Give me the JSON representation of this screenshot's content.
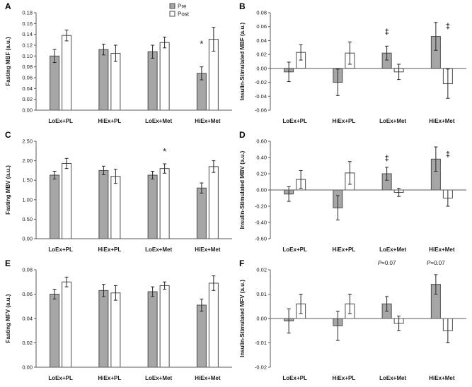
{
  "figure": {
    "colors": {
      "pre_fill": "#a6a6a6",
      "post_fill": "#ffffff",
      "bar_stroke": "#4d4d4d",
      "axis": "#595959",
      "error": "#262626",
      "text": "#1a1a1a"
    }
  },
  "chart_data": [
    {
      "panel": "A",
      "type": "bar",
      "ylabel": "Fasting MBF (a.u.)",
      "ylim": [
        0,
        0.18
      ],
      "ytick_step": 0.02,
      "ydecimals": 2,
      "categories": [
        "LoEx+PL",
        "HiEx+PL",
        "LoEx+Met",
        "HiEx+Met"
      ],
      "series": [
        {
          "name": "Pre",
          "values": [
            0.1,
            0.112,
            0.108,
            0.068
          ],
          "errors": [
            0.012,
            0.01,
            0.012,
            0.012
          ]
        },
        {
          "name": "Post",
          "values": [
            0.138,
            0.105,
            0.125,
            0.131
          ],
          "errors": [
            0.01,
            0.015,
            0.01,
            0.022
          ]
        }
      ],
      "annotations": [
        {
          "text": "*",
          "category": "HiEx+Met",
          "series": "Pre",
          "y": 0.117
        }
      ],
      "legend": true,
      "legend_position": "top-right"
    },
    {
      "panel": "B",
      "type": "bar",
      "ylabel": "Insulin-Stimulated MBF (a.u.)",
      "ylim": [
        -0.06,
        0.08
      ],
      "ytick_step": 0.02,
      "ydecimals": 2,
      "categories": [
        "LoEx+PL",
        "HiEx+PL",
        "LoEx+Met",
        "HiEx+Met"
      ],
      "series": [
        {
          "name": "Pre",
          "values": [
            -0.005,
            -0.02,
            0.022,
            0.046
          ],
          "errors": [
            0.014,
            0.019,
            0.01,
            0.02
          ]
        },
        {
          "name": "Post",
          "values": [
            0.023,
            0.022,
            -0.005,
            -0.022
          ],
          "errors": [
            0.011,
            0.016,
            0.011,
            0.021
          ]
        }
      ],
      "annotations": [
        {
          "text": "‡",
          "category": "LoEx+Met",
          "series": "Pre",
          "y": 0.049
        },
        {
          "text": "‡",
          "category": "HiEx+Met",
          "series": "Post",
          "y": 0.057
        }
      ],
      "legend": false
    },
    {
      "panel": "C",
      "type": "bar",
      "ylabel": "Fasting MBV (a.u.)",
      "ylim": [
        0,
        2.5
      ],
      "ytick_step": 0.5,
      "ydecimals": 2,
      "categories": [
        "LoEx+PL",
        "HiEx+PL",
        "LoEx+Met",
        "HiEx+Met"
      ],
      "series": [
        {
          "name": "Pre",
          "values": [
            1.63,
            1.75,
            1.63,
            1.3
          ],
          "errors": [
            0.1,
            0.11,
            0.1,
            0.13
          ]
        },
        {
          "name": "Post",
          "values": [
            1.93,
            1.6,
            1.8,
            1.85
          ],
          "errors": [
            0.13,
            0.18,
            0.12,
            0.15
          ]
        }
      ],
      "annotations": [
        {
          "text": "*",
          "category": "LoEx+Met",
          "series": "Post",
          "y": 2.16
        }
      ],
      "legend": false
    },
    {
      "panel": "D",
      "type": "bar",
      "ylabel": "Insulin-Stimulated MBV (a.u.)",
      "ylim": [
        -0.6,
        0.6
      ],
      "ytick_step": 0.2,
      "ydecimals": 2,
      "categories": [
        "LoEx+PL",
        "HiEx+PL",
        "LoEx+Met",
        "HiEx+Met"
      ],
      "series": [
        {
          "name": "Pre",
          "values": [
            -0.05,
            -0.22,
            0.2,
            0.38
          ],
          "errors": [
            0.09,
            0.15,
            0.08,
            0.15
          ]
        },
        {
          "name": "Post",
          "values": [
            0.13,
            0.21,
            -0.03,
            -0.1
          ],
          "errors": [
            0.11,
            0.14,
            0.05,
            0.1
          ]
        }
      ],
      "annotations": [
        {
          "text": "‡",
          "category": "LoEx+Met",
          "series": "Pre",
          "y": 0.36
        },
        {
          "text": "‡",
          "category": "HiEx+Met",
          "series": "Post",
          "y": 0.41
        }
      ],
      "legend": false
    },
    {
      "panel": "E",
      "type": "bar",
      "ylabel": "Fasting MFV (a.u.)",
      "ylim": [
        0,
        0.08
      ],
      "ytick_step": 0.02,
      "ydecimals": 2,
      "categories": [
        "LoEx+PL",
        "HiEx+PL",
        "LoEx+Met",
        "HiEx+Met"
      ],
      "series": [
        {
          "name": "Pre",
          "values": [
            0.06,
            0.063,
            0.062,
            0.051
          ],
          "errors": [
            0.004,
            0.005,
            0.004,
            0.005
          ]
        },
        {
          "name": "Post",
          "values": [
            0.07,
            0.061,
            0.067,
            0.069
          ],
          "errors": [
            0.004,
            0.006,
            0.003,
            0.006
          ]
        }
      ],
      "annotations": [],
      "legend": false
    },
    {
      "panel": "F",
      "type": "bar",
      "ylabel": "Insulin-Stimulated MFV (a.u.)",
      "ylim": [
        -0.02,
        0.02
      ],
      "ytick_step": 0.01,
      "ydecimals": 2,
      "categories": [
        "LoEx+PL",
        "HiEx+PL",
        "LoEx+Met",
        "HiEx+Met"
      ],
      "series": [
        {
          "name": "Pre",
          "values": [
            -0.001,
            -0.003,
            0.006,
            0.014
          ],
          "errors": [
            0.005,
            0.006,
            0.003,
            0.004
          ]
        },
        {
          "name": "Post",
          "values": [
            0.006,
            0.006,
            -0.002,
            -0.005
          ],
          "errors": [
            0.004,
            0.004,
            0.003,
            0.005
          ]
        }
      ],
      "annotations": [
        {
          "text": "P=0.07",
          "category": "LoEx+Met",
          "series": "Pre",
          "y": 0.022
        },
        {
          "text": "P=0.07",
          "category": "HiEx+Met",
          "series": "Pre",
          "y": 0.022
        }
      ],
      "legend": false
    }
  ]
}
